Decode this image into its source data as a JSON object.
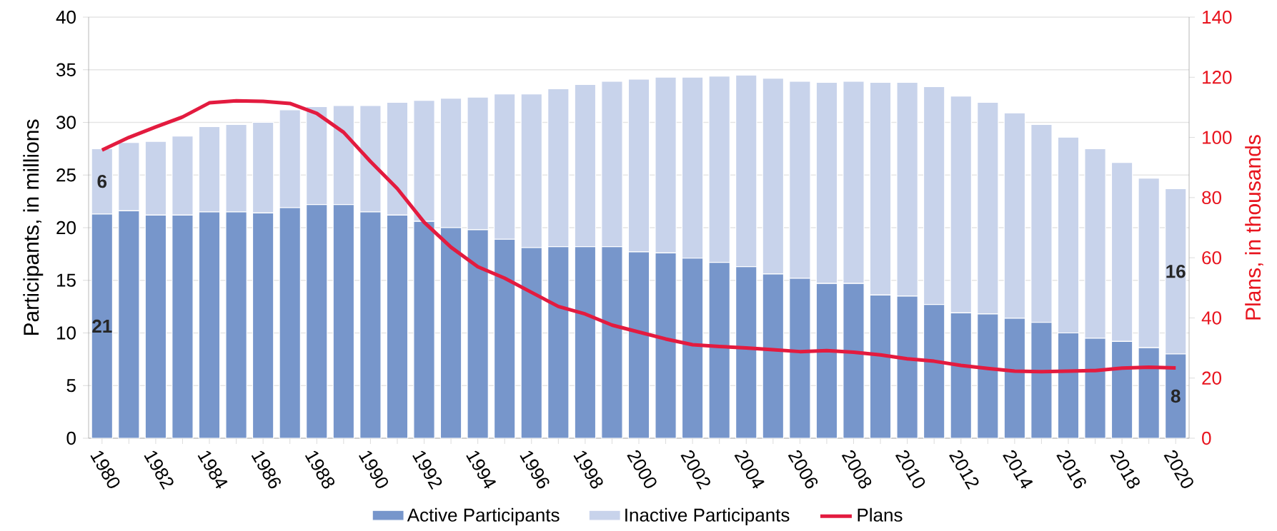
{
  "chart_data": {
    "type": "bar",
    "stacked": true,
    "ylabel": "Participants, in millions",
    "y2label": "Plans, in thousands",
    "categories": [
      "1980",
      null,
      "1982",
      null,
      "1984",
      null,
      "1986",
      null,
      "1988",
      null,
      "1990",
      null,
      "1992",
      null,
      "1994",
      null,
      "1996",
      null,
      "1998",
      null,
      "2000",
      null,
      "2002",
      null,
      "2004",
      null,
      "2006",
      null,
      "2008",
      null,
      "2010",
      null,
      "2012",
      null,
      "2014",
      null,
      "2016",
      null,
      "2018",
      null,
      "2020"
    ],
    "series": [
      {
        "name": "Active Participants",
        "color": "#7796cb",
        "values": [
          21.3,
          21.6,
          21.2,
          21.2,
          21.5,
          21.5,
          21.4,
          21.9,
          22.2,
          22.2,
          21.5,
          21.2,
          20.6,
          20.0,
          19.8,
          18.9,
          18.1,
          18.2,
          18.2,
          18.2,
          17.7,
          17.6,
          17.1,
          16.7,
          16.3,
          15.6,
          15.2,
          14.7,
          14.7,
          13.6,
          13.5,
          12.7,
          11.9,
          11.8,
          11.4,
          11.0,
          10.0,
          9.5,
          9.2,
          8.6,
          8.0
        ],
        "value_labels": [
          "21",
          null,
          null,
          null,
          null,
          null,
          null,
          null,
          null,
          null,
          null,
          null,
          null,
          null,
          null,
          null,
          null,
          null,
          null,
          null,
          null,
          null,
          null,
          null,
          null,
          null,
          null,
          null,
          null,
          null,
          null,
          null,
          null,
          null,
          null,
          null,
          null,
          null,
          null,
          null,
          "8"
        ]
      },
      {
        "name": "Inactive Participants",
        "color": "#c8d3eb",
        "values": [
          6.2,
          6.5,
          7.0,
          7.5,
          8.1,
          8.3,
          8.6,
          9.3,
          9.3,
          9.4,
          10.1,
          10.7,
          11.5,
          12.3,
          12.6,
          13.8,
          14.6,
          15.0,
          15.4,
          15.7,
          16.4,
          16.7,
          17.2,
          17.7,
          18.2,
          18.6,
          18.7,
          19.1,
          19.2,
          20.2,
          20.3,
          20.7,
          20.6,
          20.1,
          19.5,
          18.8,
          18.6,
          18.0,
          17.0,
          16.1,
          15.7
        ],
        "value_labels": [
          "6",
          null,
          null,
          null,
          null,
          null,
          null,
          null,
          null,
          null,
          null,
          null,
          null,
          null,
          null,
          null,
          null,
          null,
          null,
          null,
          null,
          null,
          null,
          null,
          null,
          null,
          null,
          null,
          null,
          null,
          null,
          null,
          null,
          null,
          null,
          null,
          null,
          null,
          null,
          null,
          "16"
        ]
      },
      {
        "name": "Plans",
        "type": "line",
        "axis": "y2",
        "color": "#e31b3f",
        "values": [
          95.8,
          100,
          103.5,
          106.8,
          111.5,
          112.2,
          112,
          111.3,
          108,
          101.7,
          92,
          83,
          71.8,
          63.5,
          57,
          53.2,
          48.5,
          43.8,
          41.3,
          37.6,
          35.3,
          33,
          31.1,
          30.5,
          30,
          29.4,
          28.8,
          29.1,
          28.6,
          27.7,
          26.4,
          25.6,
          24.2,
          23.2,
          22.3,
          22.1,
          22.3,
          22.5,
          23.3,
          23.6,
          23.4
        ]
      }
    ],
    "ylim": [
      0,
      40
    ],
    "yticks": [
      0,
      5,
      10,
      15,
      20,
      25,
      30,
      35,
      40
    ],
    "y2lim": [
      0,
      140
    ],
    "y2ticks": [
      0,
      20,
      40,
      60,
      80,
      100,
      120,
      140
    ],
    "grid": "y",
    "legend": "bottom",
    "marker": "none",
    "line_style": "solid"
  }
}
